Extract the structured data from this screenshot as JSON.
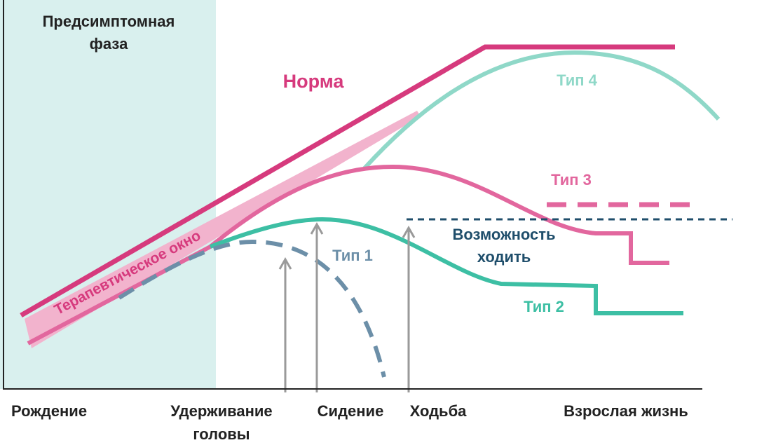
{
  "phase": [
    "Предсимптомная",
    "фаза"
  ],
  "curves": {
    "norm": "Норма",
    "type4": "Тип 4",
    "type3": "Тип 3",
    "type1": "Тип 1",
    "type2": "Тип 2",
    "window": "Терапевтическое окно"
  },
  "walk_ability": [
    "Возможность",
    "ходить"
  ],
  "milestones": {
    "birth": "Рождение",
    "head": [
      "Удерживание",
      "головы"
    ],
    "sitting": "Сидение",
    "walking": "Ходьба",
    "adult": "Взрослая жизнь"
  }
}
